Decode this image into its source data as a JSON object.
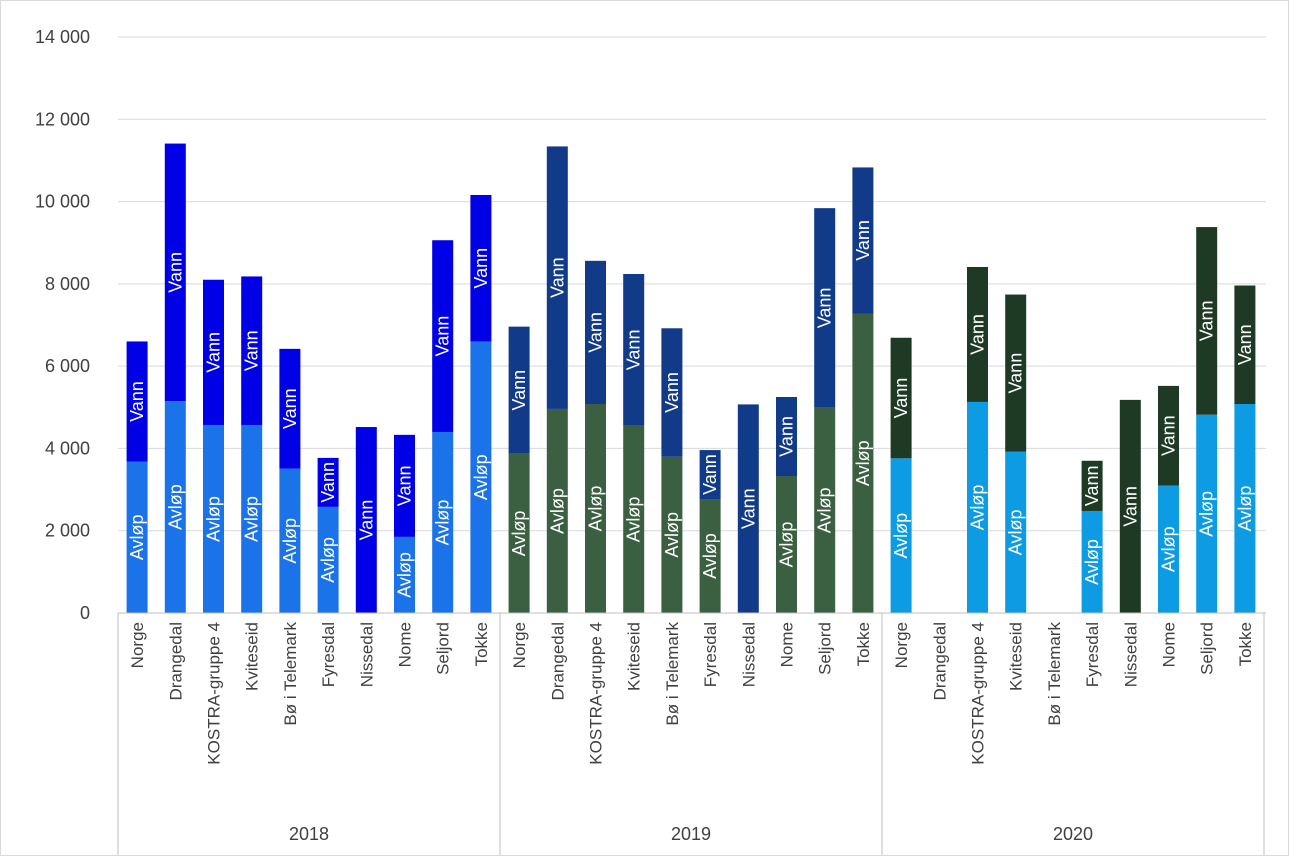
{
  "chart_data": {
    "type": "bar",
    "stacked": true,
    "title": "",
    "xlabel": "",
    "ylabel": "",
    "ylim": [
      0,
      14000
    ],
    "yticks": [
      0,
      2000,
      4000,
      6000,
      8000,
      10000,
      12000,
      14000
    ],
    "ytick_labels": [
      "0",
      "2 000",
      "4 000",
      "6 000",
      "8 000",
      "10 000",
      "12 000",
      "14 000"
    ],
    "grid": true,
    "legend": "none",
    "series_labels": [
      "Avløp",
      "Vann"
    ],
    "groups": [
      {
        "label": "2018",
        "colors": {
          "Avløp": "#1a73e8",
          "Vann": "#0000e6"
        },
        "categories": [
          "Norge",
          "Drangedal",
          "KOSTRA-gruppe 4",
          "Kviteseid",
          "Bø i Telemark",
          "Fyresdal",
          "Nissedal",
          "Nome",
          "Seljord",
          "Tokke"
        ],
        "avlop": [
          3680,
          5150,
          4570,
          4570,
          3510,
          2580,
          0,
          1850,
          4400,
          6600
        ],
        "vann": [
          2920,
          6260,
          3530,
          3610,
          2910,
          1190,
          4520,
          2480,
          4660,
          3560
        ]
      },
      {
        "label": "2019",
        "colors": {
          "Avløp": "#3a5f41",
          "Vann": "#113a88"
        },
        "categories": [
          "Norge",
          "Drangedal",
          "KOSTRA-gruppe 4",
          "Kviteseid",
          "Bø i Telemark",
          "Fyresdal",
          "Nissedal",
          "Nome",
          "Seljord",
          "Tokke"
        ],
        "avlop": [
          3870,
          4960,
          5080,
          4550,
          3800,
          2770,
          0,
          3330,
          4990,
          7280
        ],
        "vann": [
          3090,
          6380,
          3480,
          3690,
          3120,
          1190,
          5070,
          1920,
          4850,
          3550
        ]
      },
      {
        "label": "2020",
        "colors": {
          "Avløp": "#0d9be3",
          "Vann": "#1f3a24"
        },
        "categories": [
          "Norge",
          "Drangedal",
          "KOSTRA-gruppe 4",
          "Kviteseid",
          "Bø i Telemark",
          "Fyresdal",
          "Nissedal",
          "Nome",
          "Seljord",
          "Tokke"
        ],
        "avlop": [
          3760,
          0,
          5130,
          3920,
          0,
          2480,
          0,
          3100,
          4820,
          5080
        ],
        "vann": [
          2930,
          0,
          3280,
          3820,
          0,
          1220,
          5180,
          2420,
          4560,
          2880
        ]
      }
    ]
  }
}
